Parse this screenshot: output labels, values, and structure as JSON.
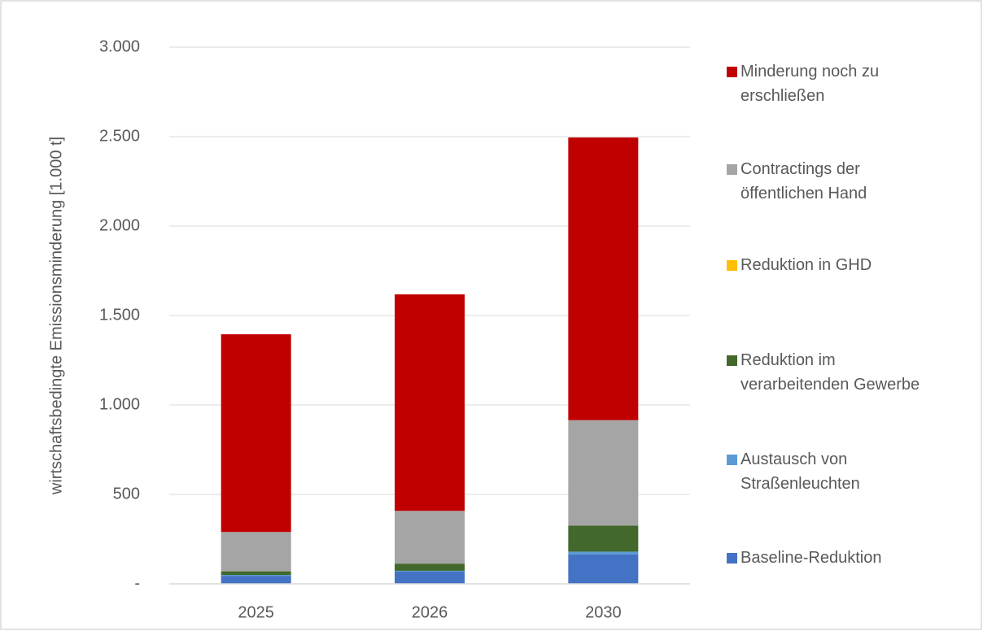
{
  "chart_data": {
    "type": "stacked_bar",
    "y_label": "wirtschaftsbedingte Emissionsminderung [1.000 t]",
    "categories": [
      "2025",
      "2026",
      "2030"
    ],
    "series": [
      {
        "name": "Baseline-Reduktion",
        "color": "#4472c4",
        "values": [
          45,
          68,
          165
        ]
      },
      {
        "name": "Austausch von Straßenleuchten",
        "color": "#5b9bd5",
        "values": [
          5,
          5,
          15
        ]
      },
      {
        "name": "Reduktion im verarbeitenden Gewerbe",
        "color": "#43682b",
        "values": [
          20,
          40,
          145
        ]
      },
      {
        "name": "Reduktion in GHD",
        "color": "#ffc000",
        "values": [
          0,
          0,
          0
        ]
      },
      {
        "name": "Contractings der öffentlichen Hand",
        "color": "#a5a5a5",
        "values": [
          220,
          295,
          590
        ]
      },
      {
        "name": "Minderung noch zu erschließen",
        "color": "#c00000",
        "values": [
          1105,
          1210,
          1580
        ]
      }
    ],
    "ylim": [
      0,
      3000
    ],
    "yticks": [
      {
        "value": 0,
        "label": "-"
      },
      500,
      {
        "value": 1000,
        "label": "1.000"
      },
      {
        "value": 1500,
        "label": "1.500"
      },
      {
        "value": 2000,
        "label": "2.000"
      },
      {
        "value": 2500,
        "label": "2.500"
      },
      {
        "value": 3000,
        "label": "3.000"
      }
    ],
    "grid": true,
    "legend": "right"
  }
}
